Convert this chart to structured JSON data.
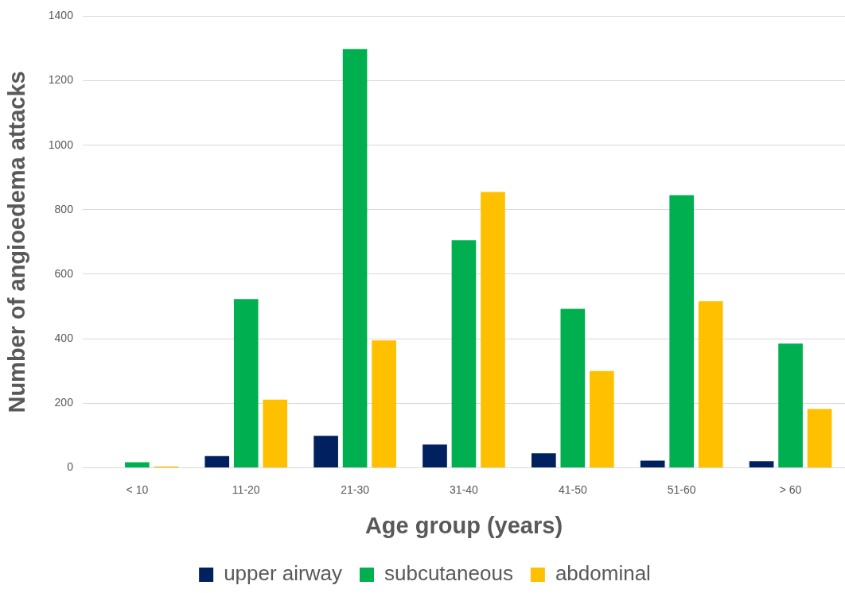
{
  "chart_data": {
    "type": "bar",
    "xlabel": "Age group (years)",
    "ylabel": "Number of angioedema attacks",
    "categories": [
      "< 10",
      "11-20",
      "21-30",
      "31-40",
      "41-50",
      "51-60",
      "> 60"
    ],
    "series": [
      {
        "name": "upper airway",
        "color": "#002060",
        "values": [
          0,
          36,
          99,
          72,
          45,
          22,
          20
        ]
      },
      {
        "name": "subcutaneous",
        "color": "#00b050",
        "values": [
          17,
          523,
          1298,
          705,
          493,
          845,
          385
        ]
      },
      {
        "name": "abdominal",
        "color": "#ffc000",
        "values": [
          4,
          211,
          395,
          855,
          300,
          516,
          182
        ]
      }
    ],
    "ylim": [
      0,
      1400
    ],
    "yticks": [
      0,
      200,
      400,
      600,
      800,
      1000,
      1200,
      1400
    ],
    "grid": "y",
    "legend": "bottom"
  }
}
